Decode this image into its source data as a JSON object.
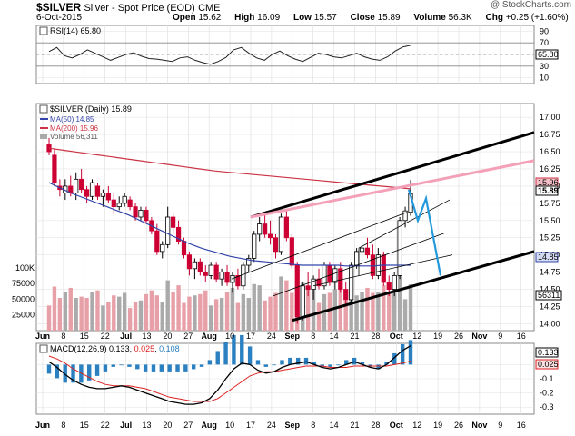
{
  "header": {
    "symbol": "$SILVER",
    "name": "Silver - Spot Price (EOD)",
    "exchange": "CME",
    "date": "6-Oct-2015",
    "open_label": "Open",
    "open": "15.62",
    "high_label": "High",
    "high": "16.09",
    "low_label": "Low",
    "low": "15.57",
    "close_label": "Close",
    "close": "15.89",
    "volume_label": "Volume",
    "volume": "56.3K",
    "chg_label": "Chg",
    "chg": "+0.25 (+1.60%)",
    "watermark": "@ StockCharts.com"
  },
  "rsi": {
    "label": "RSI(14) 65.80",
    "current": "65.80",
    "ticks": [
      "90",
      "70",
      "50",
      "30",
      "10"
    ]
  },
  "price_panel": {
    "legend_main": "$SILVER (Daily) 15.89",
    "legend_ma50": "MA(50) 14.85",
    "legend_ma200": "MA(200) 15.96",
    "legend_volume": "Volume 56,311",
    "price_ticks": [
      "17.00",
      "16.75",
      "16.50",
      "16.25",
      "16.00",
      "15.75",
      "15.50",
      "15.25",
      "15.00",
      "14.75",
      "14.50",
      "14.25",
      "14.00"
    ],
    "tag_ma200": "15.96",
    "tag_close": "15.89",
    "tag_ma50": "14.85",
    "tag_volume": "56311",
    "volume_ticks": [
      "100K",
      "75000",
      "50000",
      "25000"
    ]
  },
  "macd": {
    "label_prefix": "MACD(12,26,9)",
    "macd_value": "0.133",
    "signal_value": "0.025",
    "hist_value": "0.108",
    "ticks": [
      "0.0",
      "-0.1",
      "-0.2",
      "-0.3"
    ],
    "tag_macd": "0.133",
    "tag_signal": "0.025"
  },
  "x_labels": [
    "Jun",
    "8",
    "15",
    "22",
    "Jul",
    "13",
    "20",
    "27",
    "Aug",
    "10",
    "17",
    "24",
    "Sep",
    "8",
    "14",
    "21",
    "28",
    "Oct",
    "12",
    "19",
    "26",
    "Nov",
    "9",
    "16"
  ],
  "colors": {
    "up_candle": "#ffffff",
    "down_candle": "#cc0033",
    "ma50": "#3344aa",
    "ma200": "#cc3344",
    "volume_up": "#aaaaaa",
    "volume_down": "#e8a0a8",
    "channel_lines": "#000000",
    "pink_line": "#f4a0b8",
    "forecast_path": "#2299dd",
    "macd_line": "#000000",
    "signal_line": "#dd2222",
    "histogram": "#2a80c0"
  },
  "chart_data": {
    "type": "candlestick",
    "title": "$SILVER (Daily)",
    "ylim": [
      13.9,
      17.2
    ],
    "candles": [
      {
        "o": 16.6,
        "h": 16.7,
        "l": 16.45,
        "c": 16.5
      },
      {
        "o": 16.45,
        "h": 16.55,
        "l": 16.0,
        "c": 16.05
      },
      {
        "o": 16.0,
        "h": 16.1,
        "l": 15.85,
        "c": 15.95
      },
      {
        "o": 15.9,
        "h": 16.1,
        "l": 15.8,
        "c": 16.0
      },
      {
        "o": 16.0,
        "h": 16.15,
        "l": 15.85,
        "c": 15.9
      },
      {
        "o": 15.9,
        "h": 16.2,
        "l": 15.8,
        "c": 16.1
      },
      {
        "o": 16.1,
        "h": 16.25,
        "l": 15.9,
        "c": 15.95
      },
      {
        "o": 15.95,
        "h": 16.0,
        "l": 15.75,
        "c": 15.85
      },
      {
        "o": 15.85,
        "h": 16.1,
        "l": 15.8,
        "c": 16.05
      },
      {
        "o": 16.0,
        "h": 16.05,
        "l": 15.8,
        "c": 15.85
      },
      {
        "o": 15.85,
        "h": 15.95,
        "l": 15.7,
        "c": 15.9
      },
      {
        "o": 15.9,
        "h": 16.0,
        "l": 15.75,
        "c": 15.8
      },
      {
        "o": 15.8,
        "h": 15.9,
        "l": 15.6,
        "c": 15.7
      },
      {
        "o": 15.7,
        "h": 15.85,
        "l": 15.65,
        "c": 15.75
      },
      {
        "o": 15.75,
        "h": 15.9,
        "l": 15.7,
        "c": 15.85
      },
      {
        "o": 15.8,
        "h": 15.85,
        "l": 15.65,
        "c": 15.7
      },
      {
        "o": 15.7,
        "h": 15.75,
        "l": 15.5,
        "c": 15.55
      },
      {
        "o": 15.55,
        "h": 15.7,
        "l": 15.5,
        "c": 15.65
      },
      {
        "o": 15.65,
        "h": 15.7,
        "l": 15.45,
        "c": 15.5
      },
      {
        "o": 15.5,
        "h": 15.55,
        "l": 15.3,
        "c": 15.35
      },
      {
        "o": 15.35,
        "h": 15.45,
        "l": 15.0,
        "c": 15.05
      },
      {
        "o": 15.05,
        "h": 15.2,
        "l": 14.95,
        "c": 15.15
      },
      {
        "o": 15.15,
        "h": 15.7,
        "l": 15.1,
        "c": 15.55
      },
      {
        "o": 15.55,
        "h": 15.6,
        "l": 15.3,
        "c": 15.4
      },
      {
        "o": 15.4,
        "h": 15.5,
        "l": 15.15,
        "c": 15.2
      },
      {
        "o": 15.2,
        "h": 15.25,
        "l": 14.95,
        "c": 15.0
      },
      {
        "o": 15.0,
        "h": 15.05,
        "l": 14.7,
        "c": 14.8
      },
      {
        "o": 14.8,
        "h": 14.95,
        "l": 14.65,
        "c": 14.9
      },
      {
        "o": 14.9,
        "h": 14.95,
        "l": 14.7,
        "c": 14.75
      },
      {
        "o": 14.75,
        "h": 14.85,
        "l": 14.6,
        "c": 14.7
      },
      {
        "o": 14.7,
        "h": 14.9,
        "l": 14.65,
        "c": 14.85
      },
      {
        "o": 14.85,
        "h": 14.9,
        "l": 14.6,
        "c": 14.65
      },
      {
        "o": 14.65,
        "h": 14.8,
        "l": 14.55,
        "c": 14.75
      },
      {
        "o": 14.75,
        "h": 14.85,
        "l": 14.55,
        "c": 14.6
      },
      {
        "o": 14.6,
        "h": 14.75,
        "l": 14.45,
        "c": 14.7
      },
      {
        "o": 14.7,
        "h": 14.8,
        "l": 14.5,
        "c": 14.55
      },
      {
        "o": 14.55,
        "h": 14.9,
        "l": 14.5,
        "c": 14.85
      },
      {
        "o": 14.85,
        "h": 15.0,
        "l": 14.75,
        "c": 14.95
      },
      {
        "o": 14.95,
        "h": 15.35,
        "l": 14.9,
        "c": 15.3
      },
      {
        "o": 15.3,
        "h": 15.55,
        "l": 15.2,
        "c": 15.45
      },
      {
        "o": 15.45,
        "h": 15.6,
        "l": 15.25,
        "c": 15.3
      },
      {
        "o": 15.3,
        "h": 15.5,
        "l": 15.15,
        "c": 15.25
      },
      {
        "o": 15.25,
        "h": 15.3,
        "l": 14.95,
        "c": 15.05
      },
      {
        "o": 15.05,
        "h": 15.6,
        "l": 15.0,
        "c": 15.55
      },
      {
        "o": 15.55,
        "h": 15.65,
        "l": 15.2,
        "c": 15.25
      },
      {
        "o": 15.25,
        "h": 15.3,
        "l": 14.8,
        "c": 14.85
      },
      {
        "o": 14.85,
        "h": 14.9,
        "l": 14.0,
        "c": 14.1
      },
      {
        "o": 14.1,
        "h": 14.6,
        "l": 14.05,
        "c": 14.55
      },
      {
        "o": 14.55,
        "h": 14.75,
        "l": 14.4,
        "c": 14.5
      },
      {
        "o": 14.5,
        "h": 14.7,
        "l": 14.35,
        "c": 14.65
      },
      {
        "o": 14.65,
        "h": 14.8,
        "l": 14.5,
        "c": 14.55
      },
      {
        "o": 14.55,
        "h": 14.9,
        "l": 14.5,
        "c": 14.85
      },
      {
        "o": 14.85,
        "h": 14.9,
        "l": 14.55,
        "c": 14.6
      },
      {
        "o": 14.6,
        "h": 14.85,
        "l": 14.5,
        "c": 14.8
      },
      {
        "o": 14.8,
        "h": 14.9,
        "l": 14.45,
        "c": 14.5
      },
      {
        "o": 14.5,
        "h": 14.6,
        "l": 14.25,
        "c": 14.35
      },
      {
        "o": 14.35,
        "h": 14.9,
        "l": 14.3,
        "c": 14.85
      },
      {
        "o": 14.85,
        "h": 15.1,
        "l": 14.8,
        "c": 15.05
      },
      {
        "o": 15.05,
        "h": 15.2,
        "l": 14.9,
        "c": 15.1
      },
      {
        "o": 15.1,
        "h": 15.25,
        "l": 14.95,
        "c": 15.0
      },
      {
        "o": 15.0,
        "h": 15.15,
        "l": 14.65,
        "c": 14.7
      },
      {
        "o": 14.7,
        "h": 15.1,
        "l": 14.65,
        "c": 15.0
      },
      {
        "o": 15.0,
        "h": 15.05,
        "l": 14.55,
        "c": 14.6
      },
      {
        "o": 14.6,
        "h": 14.7,
        "l": 14.4,
        "c": 14.5
      },
      {
        "o": 14.5,
        "h": 14.75,
        "l": 14.4,
        "c": 14.7
      },
      {
        "o": 14.7,
        "h": 15.55,
        "l": 14.65,
        "c": 15.5
      },
      {
        "o": 15.5,
        "h": 15.7,
        "l": 15.4,
        "c": 15.64
      },
      {
        "o": 15.62,
        "h": 16.09,
        "l": 15.57,
        "c": 15.89
      }
    ],
    "ma50": [
      16.05,
      16.0,
      15.95,
      15.9,
      15.86,
      15.82,
      15.78,
      15.74,
      15.7,
      15.66,
      15.62,
      15.58,
      15.53,
      15.48,
      15.43,
      15.38,
      15.33,
      15.28,
      15.23,
      15.18,
      15.14,
      15.1,
      15.07,
      15.04,
      15.01,
      14.98,
      14.96,
      14.94,
      14.92,
      14.91,
      14.9,
      14.89,
      14.88,
      14.87,
      14.86,
      14.85,
      14.85,
      14.85,
      14.85,
      14.85,
      14.85,
      14.84,
      14.84,
      14.84,
      14.84,
      14.84,
      14.85,
      14.85,
      14.85,
      14.85,
      14.85
    ],
    "ma200": [
      16.55,
      16.52,
      16.49,
      16.46,
      16.43,
      16.4,
      16.37,
      16.34,
      16.31,
      16.28,
      16.25,
      16.22,
      16.2,
      16.18,
      16.16,
      16.14,
      16.12,
      16.1,
      16.08,
      16.06,
      16.04,
      16.02,
      16.0,
      15.98,
      15.96
    ],
    "volume_ticks": [
      100000,
      75000,
      50000,
      25000
    ],
    "rsi_ticks": [
      90,
      70,
      50,
      30,
      10
    ],
    "rsi_current": 65.8,
    "macd_line_value": 0.133,
    "macd_signal_value": 0.025,
    "macd_hist_value": 0.108,
    "macd_ylim": [
      -0.35,
      0.15
    ]
  }
}
